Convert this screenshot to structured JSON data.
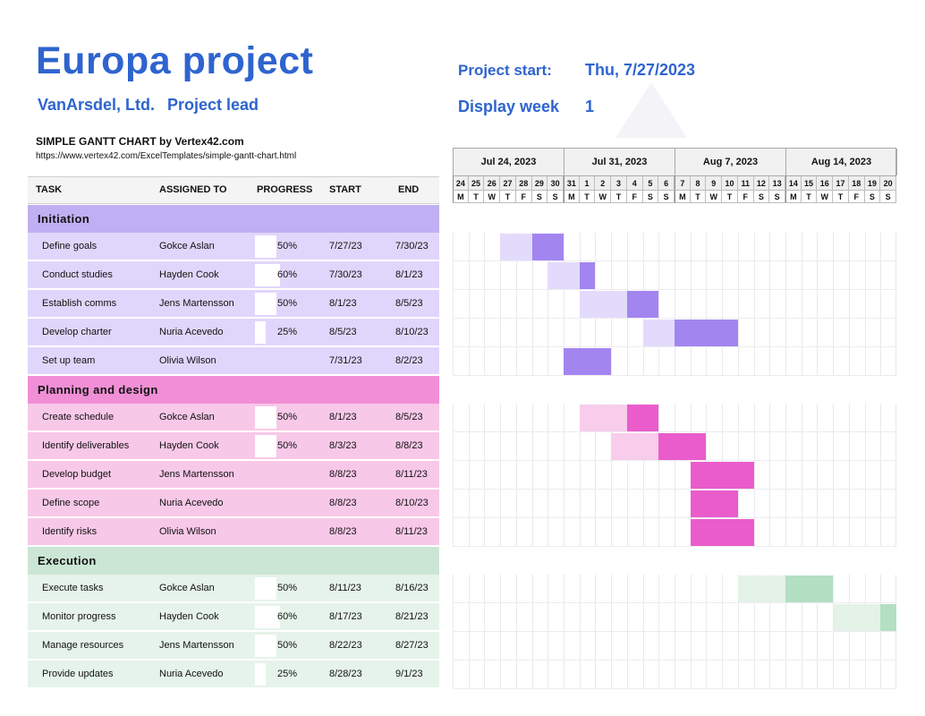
{
  "header": {
    "title": "Europa project",
    "company": "VanArsdel, Ltd.",
    "lead_label": "Project lead",
    "project_start_label": "Project start:",
    "project_start_value": "Thu, 7/27/2023",
    "display_week_label": "Display week",
    "display_week_value": "1",
    "credit": "SIMPLE GANTT CHART by Vertex42.com",
    "url": "https://www.vertex42.com/ExcelTemplates/simple-gantt-chart.html"
  },
  "columns": {
    "task": "TASK",
    "assigned": "ASSIGNED TO",
    "progress": "PROGRESS",
    "start": "START",
    "end": "END"
  },
  "timeline": {
    "weeks": [
      "Jul 24, 2023",
      "Jul 31, 2023",
      "Aug 7, 2023",
      "Aug 14, 2023"
    ],
    "day_numbers": [
      "24",
      "25",
      "26",
      "27",
      "28",
      "29",
      "30",
      "31",
      "1",
      "2",
      "3",
      "4",
      "5",
      "6",
      "7",
      "8",
      "9",
      "10",
      "11",
      "12",
      "13",
      "14",
      "15",
      "16",
      "17",
      "18",
      "19",
      "20"
    ],
    "day_letters": [
      "M",
      "T",
      "W",
      "T",
      "F",
      "S",
      "S",
      "M",
      "T",
      "W",
      "T",
      "F",
      "S",
      "S",
      "M",
      "T",
      "W",
      "T",
      "F",
      "S",
      "S",
      "M",
      "T",
      "W",
      "T",
      "F",
      "S",
      "S"
    ]
  },
  "colors": {
    "initiation_section": "#c0aff2",
    "initiation_row": "#e0d6fb",
    "initiation_bar": "#a385f0",
    "initiation_bar_light": "#e3dbfb",
    "planning_section": "#f08fd6",
    "planning_row": "#f8c8e8",
    "planning_bar": "#ea5ccb",
    "planning_bar_light": "#f7cdeb",
    "execution_section": "#cbe6d4",
    "execution_row": "#e6f3ea",
    "execution_bar": "#b3dfc3",
    "execution_bar_light": "#e4f2e8",
    "title_blue": "#2e64cf"
  },
  "sections": [
    {
      "name": "Initiation",
      "theme": "initiation",
      "tasks": [
        {
          "task": "Define goals",
          "assigned": "Gokce Aslan",
          "progress": "50%",
          "progress_value": 50,
          "start": "7/27/23",
          "end": "7/30/23"
        },
        {
          "task": "Conduct studies",
          "assigned": "Hayden Cook",
          "progress": "60%",
          "progress_value": 60,
          "start": "7/30/23",
          "end": "8/1/23"
        },
        {
          "task": "Establish comms",
          "assigned": "Jens Martensson",
          "progress": "50%",
          "progress_value": 50,
          "start": "8/1/23",
          "end": "8/5/23"
        },
        {
          "task": "Develop charter",
          "assigned": "Nuria Acevedo",
          "progress": "25%",
          "progress_value": 25,
          "start": "8/5/23",
          "end": "8/10/23"
        },
        {
          "task": "Set up team",
          "assigned": "Olivia Wilson",
          "progress": "",
          "progress_value": 0,
          "start": "7/31/23",
          "end": "8/2/23"
        }
      ]
    },
    {
      "name": "Planning and design",
      "theme": "planning",
      "tasks": [
        {
          "task": "Create schedule",
          "assigned": "Gokce Aslan",
          "progress": "50%",
          "progress_value": 50,
          "start": "8/1/23",
          "end": "8/5/23"
        },
        {
          "task": "Identify deliverables",
          "assigned": "Hayden Cook",
          "progress": "50%",
          "progress_value": 50,
          "start": "8/3/23",
          "end": "8/8/23"
        },
        {
          "task": "Develop budget",
          "assigned": "Jens Martensson",
          "progress": "",
          "progress_value": 0,
          "start": "8/8/23",
          "end": "8/11/23"
        },
        {
          "task": "Define scope",
          "assigned": "Nuria Acevedo",
          "progress": "",
          "progress_value": 0,
          "start": "8/8/23",
          "end": "8/10/23"
        },
        {
          "task": "Identify risks",
          "assigned": "Olivia Wilson",
          "progress": "",
          "progress_value": 0,
          "start": "8/8/23",
          "end": "8/11/23"
        }
      ]
    },
    {
      "name": "Execution",
      "theme": "execution",
      "tasks": [
        {
          "task": "Execute tasks",
          "assigned": "Gokce Aslan",
          "progress": "50%",
          "progress_value": 50,
          "start": "8/11/23",
          "end": "8/16/23"
        },
        {
          "task": "Monitor progress",
          "assigned": "Hayden Cook",
          "progress": "60%",
          "progress_value": 60,
          "start": "8/17/23",
          "end": "8/21/23"
        },
        {
          "task": "Manage resources",
          "assigned": "Jens Martensson",
          "progress": "50%",
          "progress_value": 50,
          "start": "8/22/23",
          "end": "8/27/23"
        },
        {
          "task": "Provide updates",
          "assigned": "Nuria Acevedo",
          "progress": "25%",
          "progress_value": 25,
          "start": "8/28/23",
          "end": "9/1/23"
        }
      ]
    }
  ]
}
